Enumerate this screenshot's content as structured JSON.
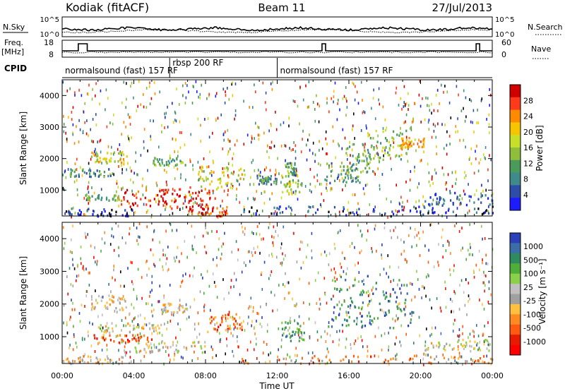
{
  "header": {
    "station": "Kodiak (fitACF)",
    "beam": "Beam 11",
    "date": "27/Jul/2013"
  },
  "summary": {
    "nsky_label": "N.Sky",
    "nsky_ticks": [
      "10^5",
      "10^0"
    ],
    "nsearch_label": "N.Search",
    "nsearch_ticks": [
      "10^5",
      "10^0"
    ],
    "freq_label_1": "Freq.",
    "freq_label_2": "[MHz]",
    "freq_ticks": [
      "18",
      "8"
    ],
    "nave_label": "Nave",
    "nave_ticks": [
      "60",
      "0"
    ],
    "cpid_label": "CPID",
    "cpid_segments": [
      {
        "label": "normalsound (fast) 157 RF",
        "start": 0,
        "end": 6
      },
      {
        "label": "rbsp 200 RF",
        "start": 6,
        "end": 12
      },
      {
        "label": "normalsound (fast) 157 RF",
        "start": 12,
        "end": 24
      }
    ]
  },
  "chart_data": [
    {
      "type": "heatmap",
      "panel": "power",
      "xlabel": "",
      "ylabel": "Slant Range [km]",
      "xlim": [
        0,
        24
      ],
      "ylim": [
        180,
        4500
      ],
      "yticks": [
        1000,
        2000,
        3000,
        4000
      ],
      "colorbar": {
        "label": "Power [dB]",
        "ticks": [
          "28",
          "24",
          "20",
          "16",
          "12",
          "8",
          "4"
        ],
        "colors": [
          "#d10000",
          "#ff3a1a",
          "#ff8a00",
          "#f7c400",
          "#c8df2a",
          "#8fbf3a",
          "#4a9a5a",
          "#3f8a8a",
          "#2d4da8",
          "#1c1cff"
        ]
      },
      "regions": [
        {
          "t0": 1.6,
          "t1": 3.6,
          "r0": 1850,
          "r1": 2250,
          "level": 0.55
        },
        {
          "t0": 0.4,
          "t1": 2.8,
          "r0": 1450,
          "r1": 1700,
          "level": 0.3
        },
        {
          "t0": 1.2,
          "t1": 3.2,
          "r0": 700,
          "r1": 900,
          "level": 0.35
        },
        {
          "t0": 3.2,
          "t1": 6.0,
          "r0": 500,
          "r1": 1050,
          "level": 0.92
        },
        {
          "t0": 6.0,
          "t1": 8.5,
          "r0": 350,
          "r1": 1150,
          "level": 0.95
        },
        {
          "t0": 7.0,
          "t1": 9.2,
          "r0": 200,
          "r1": 500,
          "level": 0.85
        },
        {
          "t0": 5.0,
          "t1": 7.0,
          "r0": 1800,
          "r1": 2050,
          "level": 0.4
        },
        {
          "t0": 7.5,
          "t1": 10.2,
          "r0": 1050,
          "r1": 1800,
          "level": 0.55
        },
        {
          "t0": 10.8,
          "t1": 12.0,
          "r0": 1200,
          "r1": 1500,
          "level": 0.3
        },
        {
          "t0": 12.2,
          "t1": 13.4,
          "r0": 900,
          "r1": 1500,
          "level": 0.5
        },
        {
          "t0": 12.4,
          "t1": 13.0,
          "r0": 1500,
          "r1": 1900,
          "level": 0.35
        },
        {
          "t0": 14.6,
          "t1": 16.6,
          "r0": 1250,
          "r1": 1900,
          "level": 0.3
        },
        {
          "t0": 15.8,
          "t1": 17.5,
          "r0": 1600,
          "r1": 2500,
          "level": 0.35
        },
        {
          "t0": 17.0,
          "t1": 19.4,
          "r0": 2000,
          "r1": 3000,
          "level": 0.45
        },
        {
          "t0": 18.8,
          "t1": 20.2,
          "r0": 2350,
          "r1": 2700,
          "level": 0.7
        },
        {
          "t0": 10.0,
          "t1": 24.0,
          "r0": 200,
          "r1": 520,
          "level": 0.1
        },
        {
          "t0": 20.0,
          "t1": 24.0,
          "r0": 550,
          "r1": 950,
          "level": 0.2
        },
        {
          "t0": 0.0,
          "t1": 4.0,
          "r0": 200,
          "r1": 450,
          "level": 0.08
        }
      ]
    },
    {
      "type": "heatmap",
      "panel": "velocity",
      "xlabel": "Time UT",
      "ylabel": "Slant Range [km]",
      "xlim": [
        0,
        24
      ],
      "ylim": [
        180,
        4500
      ],
      "xticks": [
        "00:00",
        "04:00",
        "08:00",
        "12:00",
        "16:00",
        "20:00",
        "00:00"
      ],
      "yticks": [
        1000,
        2000,
        3000,
        4000
      ],
      "colorbar": {
        "label": "Velocity [m s⁻¹]",
        "ticks": [
          "1000",
          "500",
          "100",
          "25",
          "-25",
          "-100",
          "-500",
          "-1000"
        ],
        "colors": [
          "#2a3fb8",
          "#3b6ea8",
          "#2f8a60",
          "#4fae3a",
          "#8ad04a",
          "#c0c0c0",
          "#a0a0a0",
          "#ffc040",
          "#ff8a20",
          "#ff5a10",
          "#e81a00",
          "#ff0000"
        ]
      },
      "regions": [
        {
          "t0": 1.6,
          "t1": 3.6,
          "r0": 1850,
          "r1": 2300,
          "level": 0.45
        },
        {
          "t0": 2.0,
          "t1": 5.5,
          "r0": 1150,
          "r1": 1450,
          "level": 0.5
        },
        {
          "t0": 1.5,
          "t1": 5.0,
          "r0": 850,
          "r1": 1100,
          "level": 0.2
        },
        {
          "t0": 3.2,
          "t1": 8.0,
          "r0": 550,
          "r1": 900,
          "level": 0.48
        },
        {
          "t0": 5.5,
          "t1": 7.0,
          "r0": 1750,
          "r1": 2050,
          "level": 0.45
        },
        {
          "t0": 8.0,
          "t1": 10.0,
          "r0": 1150,
          "r1": 1750,
          "level": 0.25
        },
        {
          "t0": 12.2,
          "t1": 13.5,
          "r0": 900,
          "r1": 1500,
          "level": 0.7
        },
        {
          "t0": 14.8,
          "t1": 19.6,
          "r0": 1300,
          "r1": 2900,
          "level": 0.82
        },
        {
          "t0": 10.0,
          "t1": 24.0,
          "r0": 200,
          "r1": 450,
          "level": 0.3
        },
        {
          "t0": 20.0,
          "t1": 24.0,
          "r0": 550,
          "r1": 950,
          "level": 0.5
        },
        {
          "t0": 0.0,
          "t1": 4.0,
          "r0": 200,
          "r1": 450,
          "level": 0.4
        }
      ]
    }
  ]
}
